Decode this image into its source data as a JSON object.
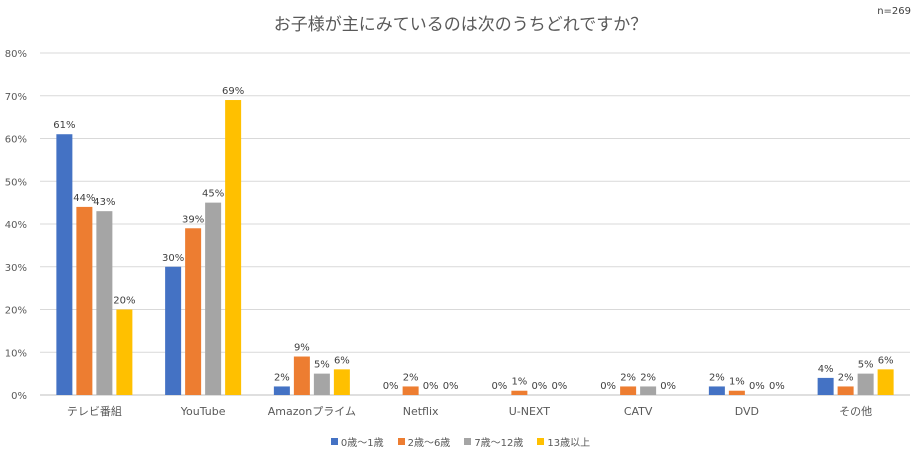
{
  "chart_data": {
    "type": "bar",
    "title": "お子様が主にみているのは次のうちどれですか？",
    "note": "n=269",
    "categories": [
      "テレビ番組",
      "YouTube",
      "Amazonプライム",
      "Netflix",
      "U-NEXT",
      "CATV",
      "DVD",
      "その他"
    ],
    "series": [
      {
        "name": "0歳〜1歳",
        "color": "#4472c4",
        "values": [
          61,
          30,
          2,
          0,
          0,
          0,
          2,
          4
        ]
      },
      {
        "name": "2歳〜6歳",
        "color": "#ed7d31",
        "values": [
          44,
          39,
          9,
          2,
          1,
          2,
          1,
          2
        ]
      },
      {
        "name": "7歳〜12歳",
        "color": "#a5a5a5",
        "values": [
          43,
          45,
          5,
          0,
          0,
          2,
          0,
          5
        ]
      },
      {
        "name": "13歳以上",
        "color": "#ffc000",
        "values": [
          20,
          69,
          6,
          0,
          0,
          0,
          0,
          6
        ]
      }
    ],
    "yticks": [
      "0%",
      "10%",
      "20%",
      "30%",
      "40%",
      "50%",
      "60%",
      "70%",
      "80%"
    ],
    "ylim": [
      0,
      80
    ],
    "value_suffix": "%",
    "grid": true,
    "legend_position": "bottom"
  }
}
